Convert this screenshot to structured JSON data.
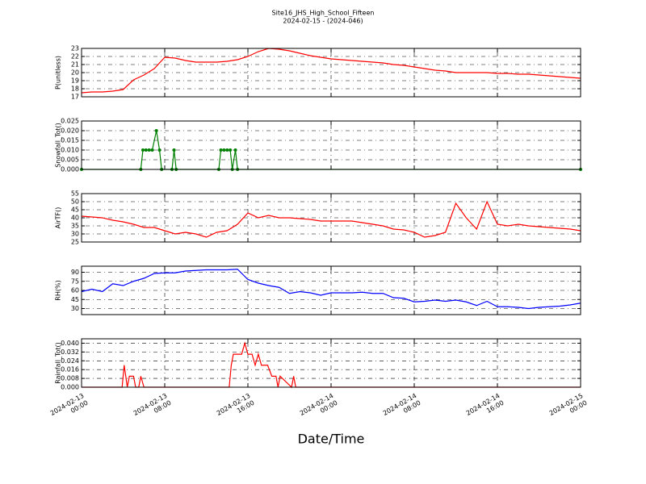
{
  "chart_data": [
    {
      "type": "line",
      "title": "Site16_JHS_High_School_Fifteen",
      "subtitle": "2024-02-15 - (2024-046)",
      "ylabel": "P(unitless)",
      "color": "#ff0000",
      "x": [
        0,
        1,
        2,
        3,
        4,
        5,
        6,
        7,
        8,
        9,
        10,
        11,
        12,
        13,
        14,
        15,
        16,
        17,
        18,
        19,
        20,
        21,
        22,
        23,
        24,
        25,
        26,
        27,
        28,
        29,
        30,
        31,
        32,
        33,
        34,
        35,
        36,
        37,
        38,
        39,
        40,
        41,
        42,
        43,
        44,
        45,
        46,
        47,
        48
      ],
      "values": [
        17.5,
        17.6,
        17.6,
        17.7,
        17.9,
        19.1,
        19.7,
        20.5,
        21.9,
        21.8,
        21.5,
        21.3,
        21.3,
        21.3,
        21.4,
        21.6,
        22.0,
        22.6,
        23.0,
        22.9,
        22.7,
        22.4,
        22.1,
        21.9,
        21.7,
        21.6,
        21.5,
        21.4,
        21.3,
        21.2,
        21.0,
        20.9,
        20.7,
        20.5,
        20.3,
        20.2,
        20.0,
        20.0,
        20.0,
        20.0,
        19.9,
        19.9,
        19.8,
        19.8,
        19.7,
        19.6,
        19.5,
        19.4,
        19.3
      ],
      "ylim": [
        17,
        23
      ],
      "yticks": [
        17,
        18,
        19,
        20,
        21,
        22,
        23
      ],
      "grid": true
    },
    {
      "type": "line",
      "ylabel": "Snowfall_Tot()",
      "color": "#008000",
      "marker": "o",
      "x": [
        0,
        5.7,
        5.9,
        6.2,
        6.5,
        6.8,
        7.2,
        7.5,
        7.7,
        8.7,
        8.9,
        9.1,
        13.2,
        13.4,
        13.7,
        14.0,
        14.3,
        14.5,
        14.8,
        15.0,
        48
      ],
      "values": [
        0,
        0,
        0.01,
        0.01,
        0.01,
        0.01,
        0.02,
        0.01,
        0,
        0,
        0.01,
        0,
        0,
        0.01,
        0.01,
        0.01,
        0.01,
        0,
        0.01,
        0,
        0
      ],
      "ylim": [
        0,
        0.025
      ],
      "yticks": [
        {
          "value": 0,
          "label": "0.000"
        },
        {
          "value": 0.005,
          "label": "0.005"
        },
        {
          "value": 0.01,
          "label": "0.010"
        },
        {
          "value": 0.015,
          "label": "0.015"
        },
        {
          "value": 0.02,
          "label": "0.020"
        },
        {
          "value": 0.025,
          "label": "0.025"
        }
      ],
      "grid": true
    },
    {
      "type": "line",
      "ylabel": "AirTF()",
      "color": "#ff0000",
      "x": [
        0,
        1,
        2,
        3,
        4,
        5,
        6,
        7,
        8,
        9,
        10,
        11,
        12,
        13,
        14,
        15,
        16,
        17,
        18,
        19,
        20,
        21,
        22,
        23,
        24,
        25,
        26,
        27,
        28,
        29,
        30,
        31,
        32,
        33,
        34,
        35,
        36,
        37,
        38,
        39,
        40,
        41,
        42,
        43,
        44,
        45,
        46,
        47,
        48
      ],
      "values": [
        41,
        40.5,
        40,
        38.5,
        37.5,
        36,
        34,
        34,
        32,
        30,
        31,
        30,
        28,
        31,
        32,
        36,
        43,
        40,
        41.5,
        40,
        40,
        39.5,
        39,
        38,
        38,
        38,
        38,
        37,
        36,
        35,
        33,
        32.5,
        31,
        28,
        29,
        31,
        49,
        40,
        33,
        50,
        36,
        35,
        36,
        35,
        34.5,
        34,
        33.5,
        33,
        32
      ],
      "ylim": [
        25,
        55
      ],
      "yticks": [
        25,
        30,
        35,
        40,
        45,
        50,
        55
      ],
      "grid": true
    },
    {
      "type": "line",
      "ylabel": "RH(%)",
      "color": "#0000ff",
      "x": [
        0,
        1,
        2,
        3,
        4,
        5,
        6,
        7,
        8,
        9,
        10,
        11,
        12,
        13,
        14,
        15,
        16,
        17,
        18,
        19,
        20,
        21,
        22,
        23,
        24,
        25,
        26,
        27,
        28,
        29,
        30,
        31,
        32,
        33,
        34,
        35,
        36,
        37,
        38,
        39,
        40,
        41,
        42,
        43,
        44,
        45,
        46,
        47,
        48
      ],
      "values": [
        58,
        62,
        58,
        71,
        68,
        75,
        80,
        88,
        89,
        89,
        92,
        93,
        94,
        94,
        94,
        95,
        78,
        72,
        68,
        65,
        55,
        58,
        56,
        52,
        56,
        56,
        56,
        57,
        55,
        55,
        48,
        47,
        41,
        42,
        44,
        42,
        44,
        41,
        35,
        42,
        33,
        33,
        32,
        30,
        32,
        33,
        34,
        36,
        39
      ],
      "ylim": [
        20,
        100
      ],
      "yticks": [
        30,
        45,
        60,
        75,
        90
      ],
      "grid": true
    },
    {
      "type": "line",
      "ylabel": "Rainfall_Tot()",
      "xlabel": "Date/Time",
      "color": "#ff0000",
      "x": [
        0,
        3.9,
        4.1,
        4.4,
        4.6,
        5.0,
        5.2,
        5.5,
        5.7,
        6.0,
        14.2,
        14.4,
        14.6,
        15.0,
        15.4,
        15.7,
        16.0,
        16.4,
        16.7,
        17.0,
        17.3,
        17.9,
        18.3,
        18.7,
        18.9,
        19.1,
        20.2,
        20.4,
        20.6,
        48
      ],
      "values": [
        0,
        0,
        0.02,
        0,
        0.01,
        0.01,
        0,
        0,
        0.01,
        0,
        0,
        0.02,
        0.03,
        0.03,
        0.03,
        0.04,
        0.03,
        0.03,
        0.02,
        0.03,
        0.02,
        0.02,
        0.01,
        0.01,
        0,
        0.01,
        0,
        0.01,
        0,
        0
      ],
      "ylim": [
        0,
        0.044
      ],
      "yticks": [
        {
          "value": 0,
          "label": "0.000"
        },
        {
          "value": 0.008,
          "label": "0.008"
        },
        {
          "value": 0.016,
          "label": "0.016"
        },
        {
          "value": 0.024,
          "label": "0.024"
        },
        {
          "value": 0.032,
          "label": "0.032"
        },
        {
          "value": 0.04,
          "label": "0.040"
        }
      ],
      "grid": true,
      "xlim": [
        0,
        48
      ],
      "xticks": [
        {
          "value": 0,
          "label": "2024-02-13\n00:00"
        },
        {
          "value": 8,
          "label": "2024-02-13\n08:00"
        },
        {
          "value": 16,
          "label": "2024-02-13\n16:00"
        },
        {
          "value": 24,
          "label": "2024-02-14\n00:00"
        },
        {
          "value": 32,
          "label": "2024-02-14\n08:00"
        },
        {
          "value": 40,
          "label": "2024-02-14\n16:00"
        },
        {
          "value": 48,
          "label": "2024-02-15\n00:00"
        }
      ]
    }
  ]
}
